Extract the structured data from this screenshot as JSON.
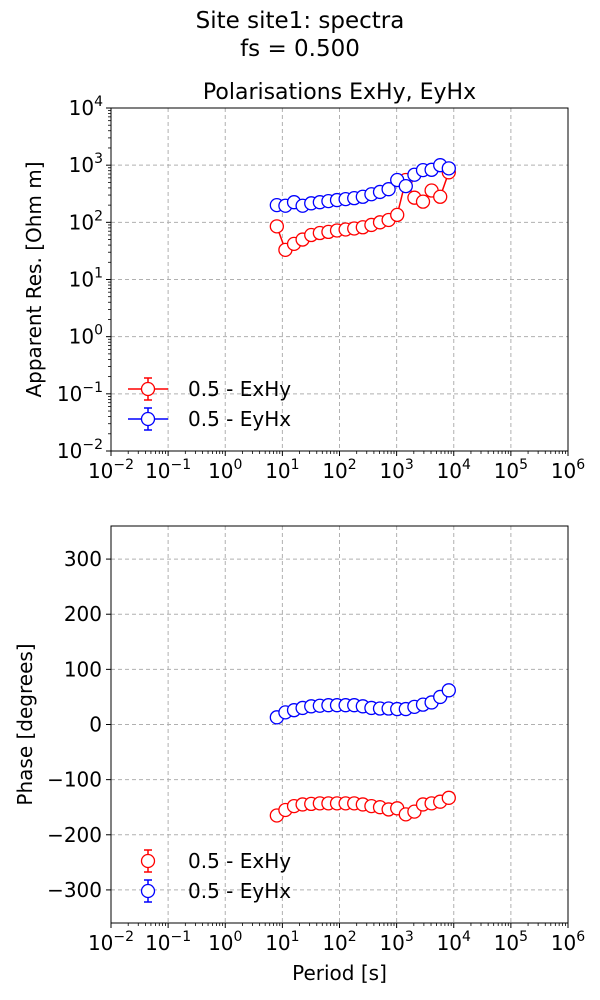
{
  "figure": {
    "title_line1": "Site site1: spectra",
    "title_line2": "fs = 0.500"
  },
  "chart_data": [
    {
      "type": "scatter",
      "title": "Polarisations ExHy, EyHx",
      "xlabel": "",
      "ylabel": "Apparent Res. [Ohm m]",
      "x_scale": "log",
      "y_scale": "log",
      "xlim": [
        0.01,
        1000000
      ],
      "ylim": [
        0.01,
        10000
      ],
      "x_ticks": [
        0.01,
        0.1,
        1,
        10,
        100,
        1000,
        10000,
        100000,
        1000000
      ],
      "x_tick_labels": [
        [
          "10",
          "−2"
        ],
        [
          "10",
          "−1"
        ],
        [
          "10",
          "0"
        ],
        [
          "10",
          "1"
        ],
        [
          "10",
          "2"
        ],
        [
          "10",
          "3"
        ],
        [
          "10",
          "4"
        ],
        [
          "10",
          "5"
        ],
        [
          "10",
          "6"
        ]
      ],
      "y_ticks": [
        0.01,
        0.1,
        1,
        10,
        100,
        1000,
        10000
      ],
      "y_tick_labels": [
        [
          "10",
          "−2"
        ],
        [
          "10",
          "−1"
        ],
        [
          "10",
          "0"
        ],
        [
          "10",
          "1"
        ],
        [
          "10",
          "2"
        ],
        [
          "10",
          "3"
        ],
        [
          "10",
          "4"
        ]
      ],
      "grid": true,
      "legend": "lower-left",
      "series": [
        {
          "name": "0.5 - ExHy",
          "color": "#ff0000",
          "connected": true,
          "x": [
            8,
            11.3,
            16,
            22.6,
            32,
            45.3,
            64,
            90.5,
            128,
            181,
            256,
            362,
            512,
            724,
            1024,
            1448,
            2048,
            2896,
            4096,
            5793,
            8192
          ],
          "y": [
            85,
            33,
            42,
            50,
            60,
            65,
            68,
            72,
            75,
            78,
            82,
            90,
            100,
            110,
            135,
            550,
            270,
            230,
            360,
            280,
            750
          ]
        },
        {
          "name": "0.5 - EyHx",
          "color": "#0000ff",
          "connected": true,
          "x": [
            8,
            11.3,
            16,
            22.6,
            32,
            45.3,
            64,
            90.5,
            128,
            181,
            256,
            362,
            512,
            724,
            1024,
            1448,
            2048,
            2896,
            4096,
            5793,
            8192
          ],
          "y": [
            200,
            195,
            225,
            195,
            215,
            225,
            235,
            245,
            255,
            265,
            280,
            310,
            340,
            380,
            550,
            430,
            680,
            820,
            830,
            1000,
            880
          ]
        }
      ]
    },
    {
      "type": "scatter",
      "title": "",
      "xlabel": "Period [s]",
      "ylabel": "Phase [degrees]",
      "x_scale": "log",
      "y_scale": "linear",
      "xlim": [
        0.01,
        1000000
      ],
      "ylim": [
        -360,
        360
      ],
      "x_ticks": [
        0.01,
        0.1,
        1,
        10,
        100,
        1000,
        10000,
        100000,
        1000000
      ],
      "x_tick_labels": [
        [
          "10",
          "−2"
        ],
        [
          "10",
          "−1"
        ],
        [
          "10",
          "0"
        ],
        [
          "10",
          "1"
        ],
        [
          "10",
          "2"
        ],
        [
          "10",
          "3"
        ],
        [
          "10",
          "4"
        ],
        [
          "10",
          "5"
        ],
        [
          "10",
          "6"
        ]
      ],
      "y_ticks": [
        -300,
        -200,
        -100,
        0,
        100,
        200,
        300
      ],
      "y_tick_labels": [
        "−300",
        "−200",
        "−100",
        "0",
        "100",
        "200",
        "300"
      ],
      "grid": true,
      "legend": "lower-left",
      "series": [
        {
          "name": "0.5 - ExHy",
          "color": "#ff0000",
          "connected": false,
          "x": [
            8,
            11.3,
            16,
            22.6,
            32,
            45.3,
            64,
            90.5,
            128,
            181,
            256,
            362,
            512,
            724,
            1024,
            1448,
            2048,
            2896,
            4096,
            5793,
            8192
          ],
          "y": [
            -165,
            -155,
            -148,
            -145,
            -144,
            -143,
            -143,
            -143,
            -143,
            -143,
            -145,
            -148,
            -150,
            -154,
            -152,
            -163,
            -158,
            -145,
            -143,
            -140,
            -133
          ]
        },
        {
          "name": "0.5 - EyHx",
          "color": "#0000ff",
          "connected": false,
          "x": [
            8,
            11.3,
            16,
            22.6,
            32,
            45.3,
            64,
            90.5,
            128,
            181,
            256,
            362,
            512,
            724,
            1024,
            1448,
            2048,
            2896,
            4096,
            5793,
            8192
          ],
          "y": [
            13,
            22,
            26,
            30,
            33,
            34,
            35,
            35,
            35,
            35,
            33,
            30,
            29,
            29,
            28,
            28,
            32,
            36,
            40,
            50,
            62
          ]
        }
      ]
    }
  ]
}
